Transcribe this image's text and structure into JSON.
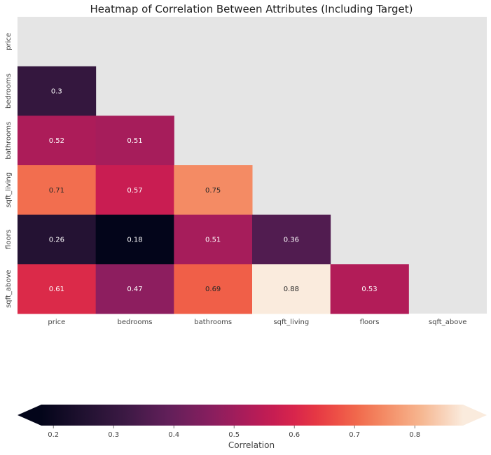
{
  "chart_data": {
    "type": "heatmap",
    "title": "Heatmap of Correlation Between Attributes (Including Target)",
    "x_categories": [
      "price",
      "bedrooms",
      "bathrooms",
      "sqft_living",
      "floors",
      "sqft_above"
    ],
    "y_categories": [
      "price",
      "bedrooms",
      "bathrooms",
      "sqft_living",
      "floors",
      "sqft_above"
    ],
    "mask": "upper-triangle-including-diagonal",
    "cells": [
      {
        "row": "bedrooms",
        "col": "price",
        "value": 0.3,
        "label": "0.3"
      },
      {
        "row": "bathrooms",
        "col": "price",
        "value": 0.52,
        "label": "0.52"
      },
      {
        "row": "bathrooms",
        "col": "bedrooms",
        "value": 0.51,
        "label": "0.51"
      },
      {
        "row": "sqft_living",
        "col": "price",
        "value": 0.71,
        "label": "0.71"
      },
      {
        "row": "sqft_living",
        "col": "bedrooms",
        "value": 0.57,
        "label": "0.57"
      },
      {
        "row": "sqft_living",
        "col": "bathrooms",
        "value": 0.75,
        "label": "0.75"
      },
      {
        "row": "floors",
        "col": "price",
        "value": 0.26,
        "label": "0.26"
      },
      {
        "row": "floors",
        "col": "bedrooms",
        "value": 0.18,
        "label": "0.18"
      },
      {
        "row": "floors",
        "col": "bathrooms",
        "value": 0.51,
        "label": "0.51"
      },
      {
        "row": "floors",
        "col": "sqft_living",
        "value": 0.36,
        "label": "0.36"
      },
      {
        "row": "sqft_above",
        "col": "price",
        "value": 0.61,
        "label": "0.61"
      },
      {
        "row": "sqft_above",
        "col": "bedrooms",
        "value": 0.47,
        "label": "0.47"
      },
      {
        "row": "sqft_above",
        "col": "bathrooms",
        "value": 0.69,
        "label": "0.69"
      },
      {
        "row": "sqft_above",
        "col": "sqft_living",
        "value": 0.88,
        "label": "0.88"
      },
      {
        "row": "sqft_above",
        "col": "floors",
        "value": 0.53,
        "label": "0.53"
      }
    ],
    "colorbar": {
      "label": "Correlation",
      "orientation": "horizontal",
      "placement": "bottom",
      "extend": "both",
      "range": [
        0.18,
        0.88
      ],
      "ticks": [
        0.2,
        0.3,
        0.4,
        0.5,
        0.6,
        0.7,
        0.8
      ],
      "tick_labels": [
        "0.2",
        "0.3",
        "0.4",
        "0.5",
        "0.6",
        "0.7",
        "0.8"
      ],
      "colormap": "rocket"
    },
    "colors": {
      "mask_background": "#e5e5e5",
      "dark_text": "#262626",
      "light_text": "#ffffff"
    },
    "grid": false
  }
}
